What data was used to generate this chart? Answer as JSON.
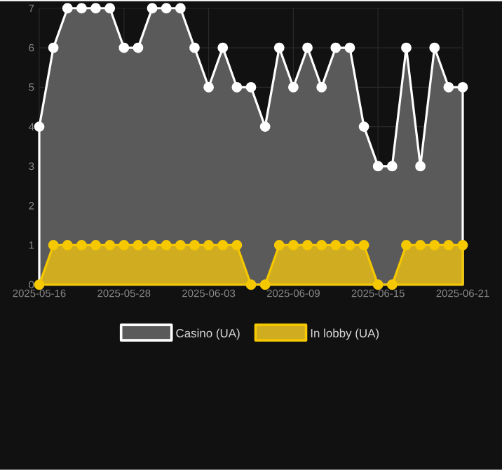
{
  "chart_data": {
    "type": "area",
    "categories": [
      "2025-05-16",
      null,
      null,
      null,
      null,
      null,
      "2025-05-28",
      null,
      null,
      null,
      null,
      null,
      "2025-06-03",
      null,
      null,
      null,
      null,
      null,
      "2025-06-09",
      null,
      null,
      null,
      null,
      null,
      "2025-06-15",
      null,
      null,
      null,
      null,
      null,
      "2025-06-21"
    ],
    "series": [
      {
        "name": "Casino (UA)",
        "color": "#ffffff",
        "values": [
          4,
          6,
          7,
          7,
          7,
          7,
          6,
          6,
          7,
          7,
          7,
          6,
          5,
          6,
          5,
          5,
          4,
          6,
          5,
          6,
          5,
          6,
          6,
          4,
          3,
          3,
          6,
          3,
          6,
          5,
          5
        ]
      },
      {
        "name": "In lobby (UA)",
        "color": "#f5c800",
        "values": [
          0,
          1,
          1,
          1,
          1,
          1,
          1,
          1,
          1,
          1,
          1,
          1,
          1,
          1,
          1,
          0,
          0,
          1,
          1,
          1,
          1,
          1,
          1,
          1,
          0,
          0,
          1,
          1,
          1,
          1,
          1
        ]
      }
    ],
    "ylim": [
      0,
      7
    ],
    "yticks": [
      0,
      1,
      2,
      3,
      4,
      5,
      6,
      7
    ],
    "grid": true,
    "legend": "bottom",
    "marker": "circle"
  }
}
